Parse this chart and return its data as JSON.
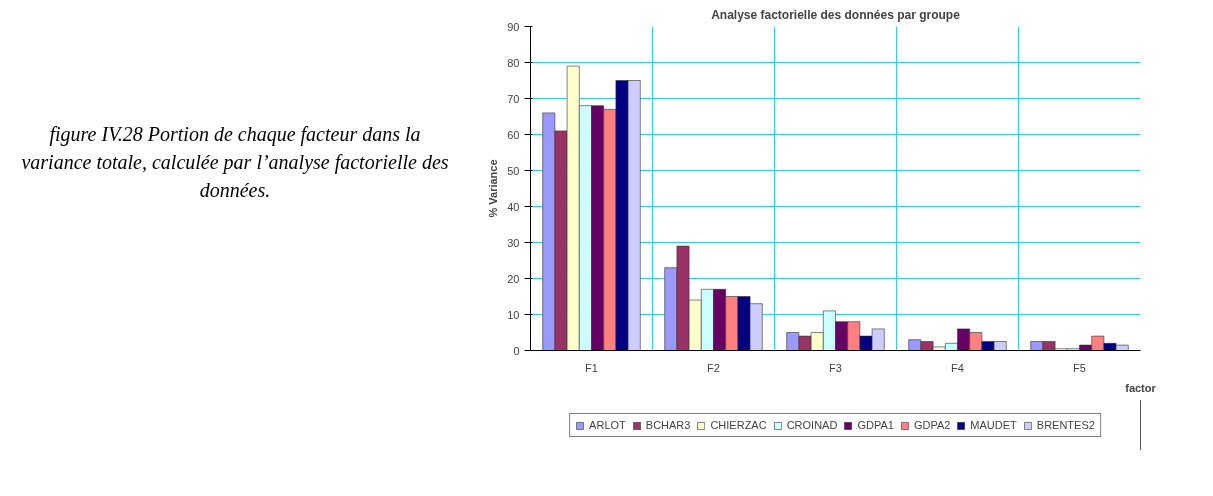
{
  "chart_data": {
    "type": "bar",
    "title": "Analyse factorielle des données par groupe",
    "xlabel": "factor",
    "ylabel": "% Variance",
    "annotations": [
      "figure IV.28 Portion de chaque facteur dans la variance totale, calculée par l’analyse factorielle des données."
    ],
    "categories": [
      "F1",
      "F2",
      "F3",
      "F4",
      "F5"
    ],
    "ylim": [
      0,
      90
    ],
    "yticks": [
      0,
      10,
      20,
      30,
      40,
      50,
      60,
      70,
      80,
      90
    ],
    "grid": true,
    "legend": "bottom",
    "series": [
      {
        "name": "ARLOT",
        "color": "#9999ff",
        "values": [
          66,
          23,
          5,
          3,
          2.5
        ]
      },
      {
        "name": "BCHAR3",
        "color": "#993366",
        "values": [
          61,
          29,
          4,
          2.5,
          2.5
        ]
      },
      {
        "name": "CHIERZAC",
        "color": "#ffffcc",
        "values": [
          79,
          14,
          5,
          1,
          0.5
        ]
      },
      {
        "name": "CROINAD",
        "color": "#ccffff",
        "values": [
          68,
          17,
          11,
          2,
          0.5
        ]
      },
      {
        "name": "GDPA1",
        "color": "#660066",
        "values": [
          68,
          17,
          8,
          6,
          1.5
        ]
      },
      {
        "name": "GDPA2",
        "color": "#ff8080",
        "values": [
          67,
          15,
          8,
          5,
          4
        ]
      },
      {
        "name": "MAUDET",
        "color": "#000080",
        "values": [
          75,
          15,
          4,
          2.5,
          2
        ]
      },
      {
        "name": "BRENTES2",
        "color": "#ccccff",
        "values": [
          75,
          13,
          6,
          2.5,
          1.5
        ]
      }
    ]
  }
}
